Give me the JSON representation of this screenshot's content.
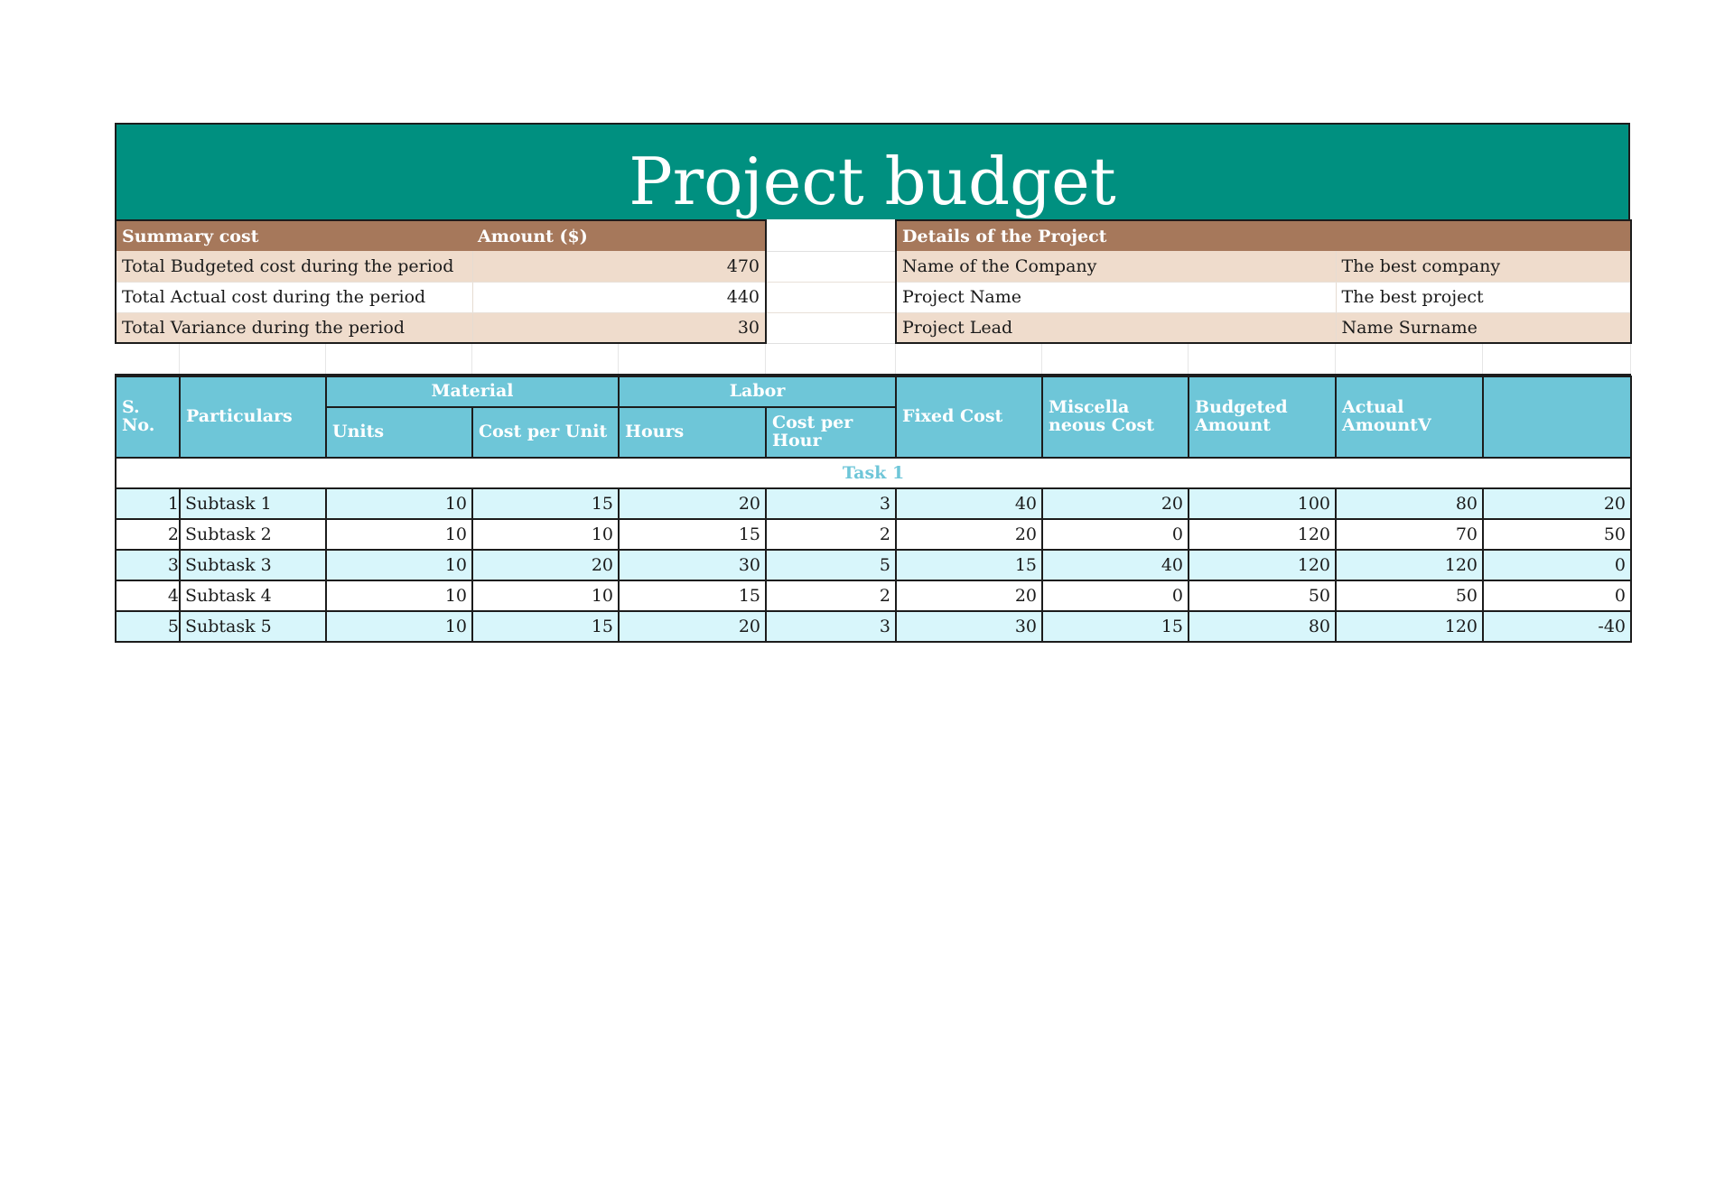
{
  "title": "Project budget",
  "summary": {
    "header_label": "Summary cost",
    "header_amount": "Amount ($)",
    "rows": [
      {
        "label": "Total Budgeted cost during the period",
        "value": "470"
      },
      {
        "label": "Total Actual cost during the period",
        "value": "440"
      },
      {
        "label": "Total Variance during the period",
        "value": "30"
      }
    ]
  },
  "details": {
    "header": "Details of the Project",
    "rows": [
      {
        "label": "Name of the Company",
        "value": "The best company"
      },
      {
        "label": "Project Name",
        "value": "The best project"
      },
      {
        "label": "Project Lead",
        "value": "Name Surname"
      }
    ]
  },
  "budget_table": {
    "headers": {
      "sno": "S. No.",
      "particulars": "Particulars",
      "material": "Material",
      "labor": "Labor",
      "units": "Units",
      "cost_per_unit": "Cost per Unit",
      "hours": "Hours",
      "cost_per_hour": "Cost per Hour",
      "fixed_cost": "Fixed Cost",
      "misc_cost": "Miscella neous Cost",
      "budgeted_amount": "Budgeted Amount",
      "actual_amount": "Actual AmountV",
      "variance": ""
    },
    "task_label": "Task 1",
    "rows": [
      {
        "sno": "1",
        "particulars": "Subtask 1",
        "units": "10",
        "cost_per_unit": "15",
        "hours": "20",
        "cost_per_hour": "3",
        "fixed_cost": "40",
        "misc_cost": "20",
        "budgeted": "100",
        "actual": "80",
        "variance": "20"
      },
      {
        "sno": "2",
        "particulars": "Subtask 2",
        "units": "10",
        "cost_per_unit": "10",
        "hours": "15",
        "cost_per_hour": "2",
        "fixed_cost": "20",
        "misc_cost": "0",
        "budgeted": "120",
        "actual": "70",
        "variance": "50"
      },
      {
        "sno": "3",
        "particulars": "Subtask 3",
        "units": "10",
        "cost_per_unit": "20",
        "hours": "30",
        "cost_per_hour": "5",
        "fixed_cost": "15",
        "misc_cost": "40",
        "budgeted": "120",
        "actual": "120",
        "variance": "0"
      },
      {
        "sno": "4",
        "particulars": "Subtask 4",
        "units": "10",
        "cost_per_unit": "10",
        "hours": "15",
        "cost_per_hour": "2",
        "fixed_cost": "20",
        "misc_cost": "0",
        "budgeted": "50",
        "actual": "50",
        "variance": "0"
      },
      {
        "sno": "5",
        "particulars": "Subtask 5",
        "units": "10",
        "cost_per_unit": "15",
        "hours": "20",
        "cost_per_hour": "3",
        "fixed_cost": "30",
        "misc_cost": "15",
        "budgeted": "80",
        "actual": "120",
        "variance": "-40"
      }
    ]
  },
  "colors": {
    "title_band": "#009080",
    "section_header": "#a6785b",
    "band_row": "#efdccc",
    "table_header": "#6ec6d8",
    "table_band_row": "#d8f6fb"
  }
}
